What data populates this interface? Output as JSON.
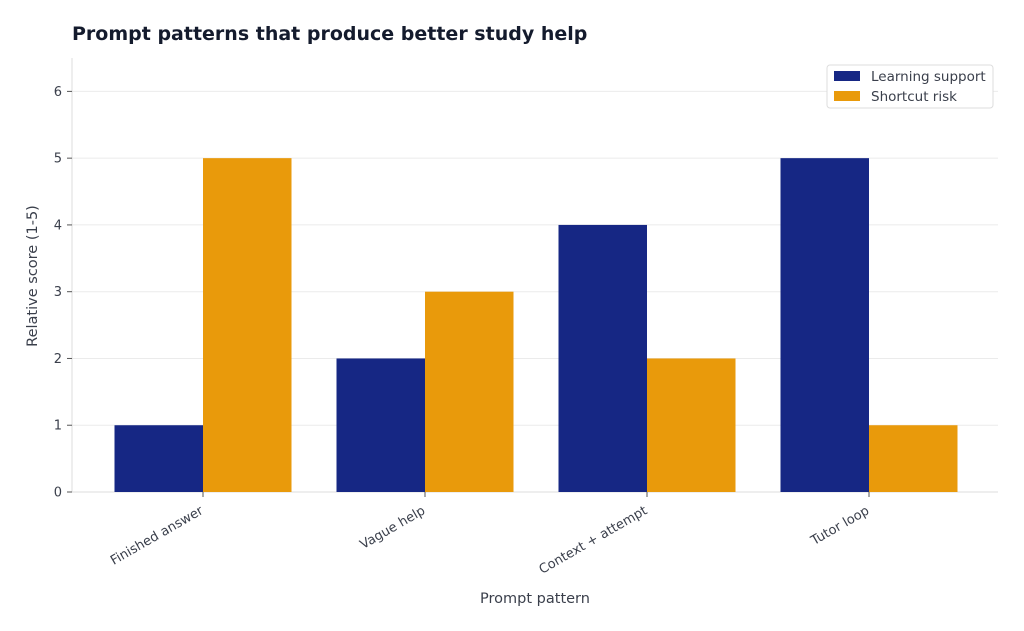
{
  "chart_data": {
    "type": "bar",
    "title": "Prompt patterns that produce better study help",
    "xlabel": "Prompt pattern",
    "ylabel": "Relative score (1-5)",
    "categories": [
      "Finished answer",
      "Vague help",
      "Context + attempt",
      "Tutor loop"
    ],
    "series": [
      {
        "name": "Learning support",
        "values": [
          1,
          2,
          4,
          5
        ],
        "color": "#162784"
      },
      {
        "name": "Shortcut risk",
        "values": [
          5,
          3,
          2,
          1
        ],
        "color": "#e99a0b"
      }
    ],
    "ylim": [
      0,
      6.5
    ],
    "yticks": [
      0,
      1,
      2,
      3,
      4,
      5,
      6
    ],
    "grid": true,
    "legend_position": "top-right"
  }
}
